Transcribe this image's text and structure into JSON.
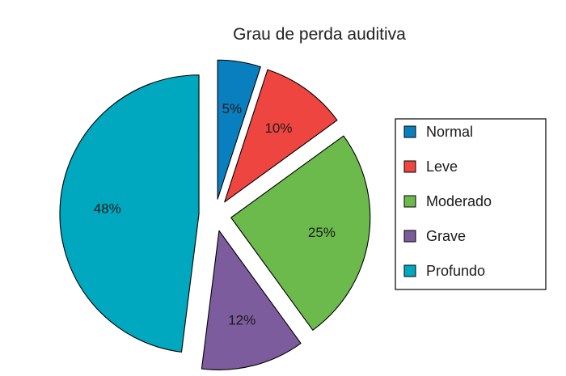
{
  "chart_data": {
    "type": "pie",
    "title": "Grau de perda auditiva",
    "legend_position": "right",
    "exploded": true,
    "slices": [
      {
        "label": "Normal",
        "value": 5,
        "display": "5%",
        "color": "#0a7fc0"
      },
      {
        "label": "Leve",
        "value": 10,
        "display": "10%",
        "color": "#ee4540"
      },
      {
        "label": "Moderado",
        "value": 25,
        "display": "25%",
        "color": "#6cb94c"
      },
      {
        "label": "Grave",
        "value": 12,
        "display": "12%",
        "color": "#7d5c9d"
      },
      {
        "label": "Profundo",
        "value": 48,
        "display": "48%",
        "color": "#00a8bf"
      }
    ]
  }
}
